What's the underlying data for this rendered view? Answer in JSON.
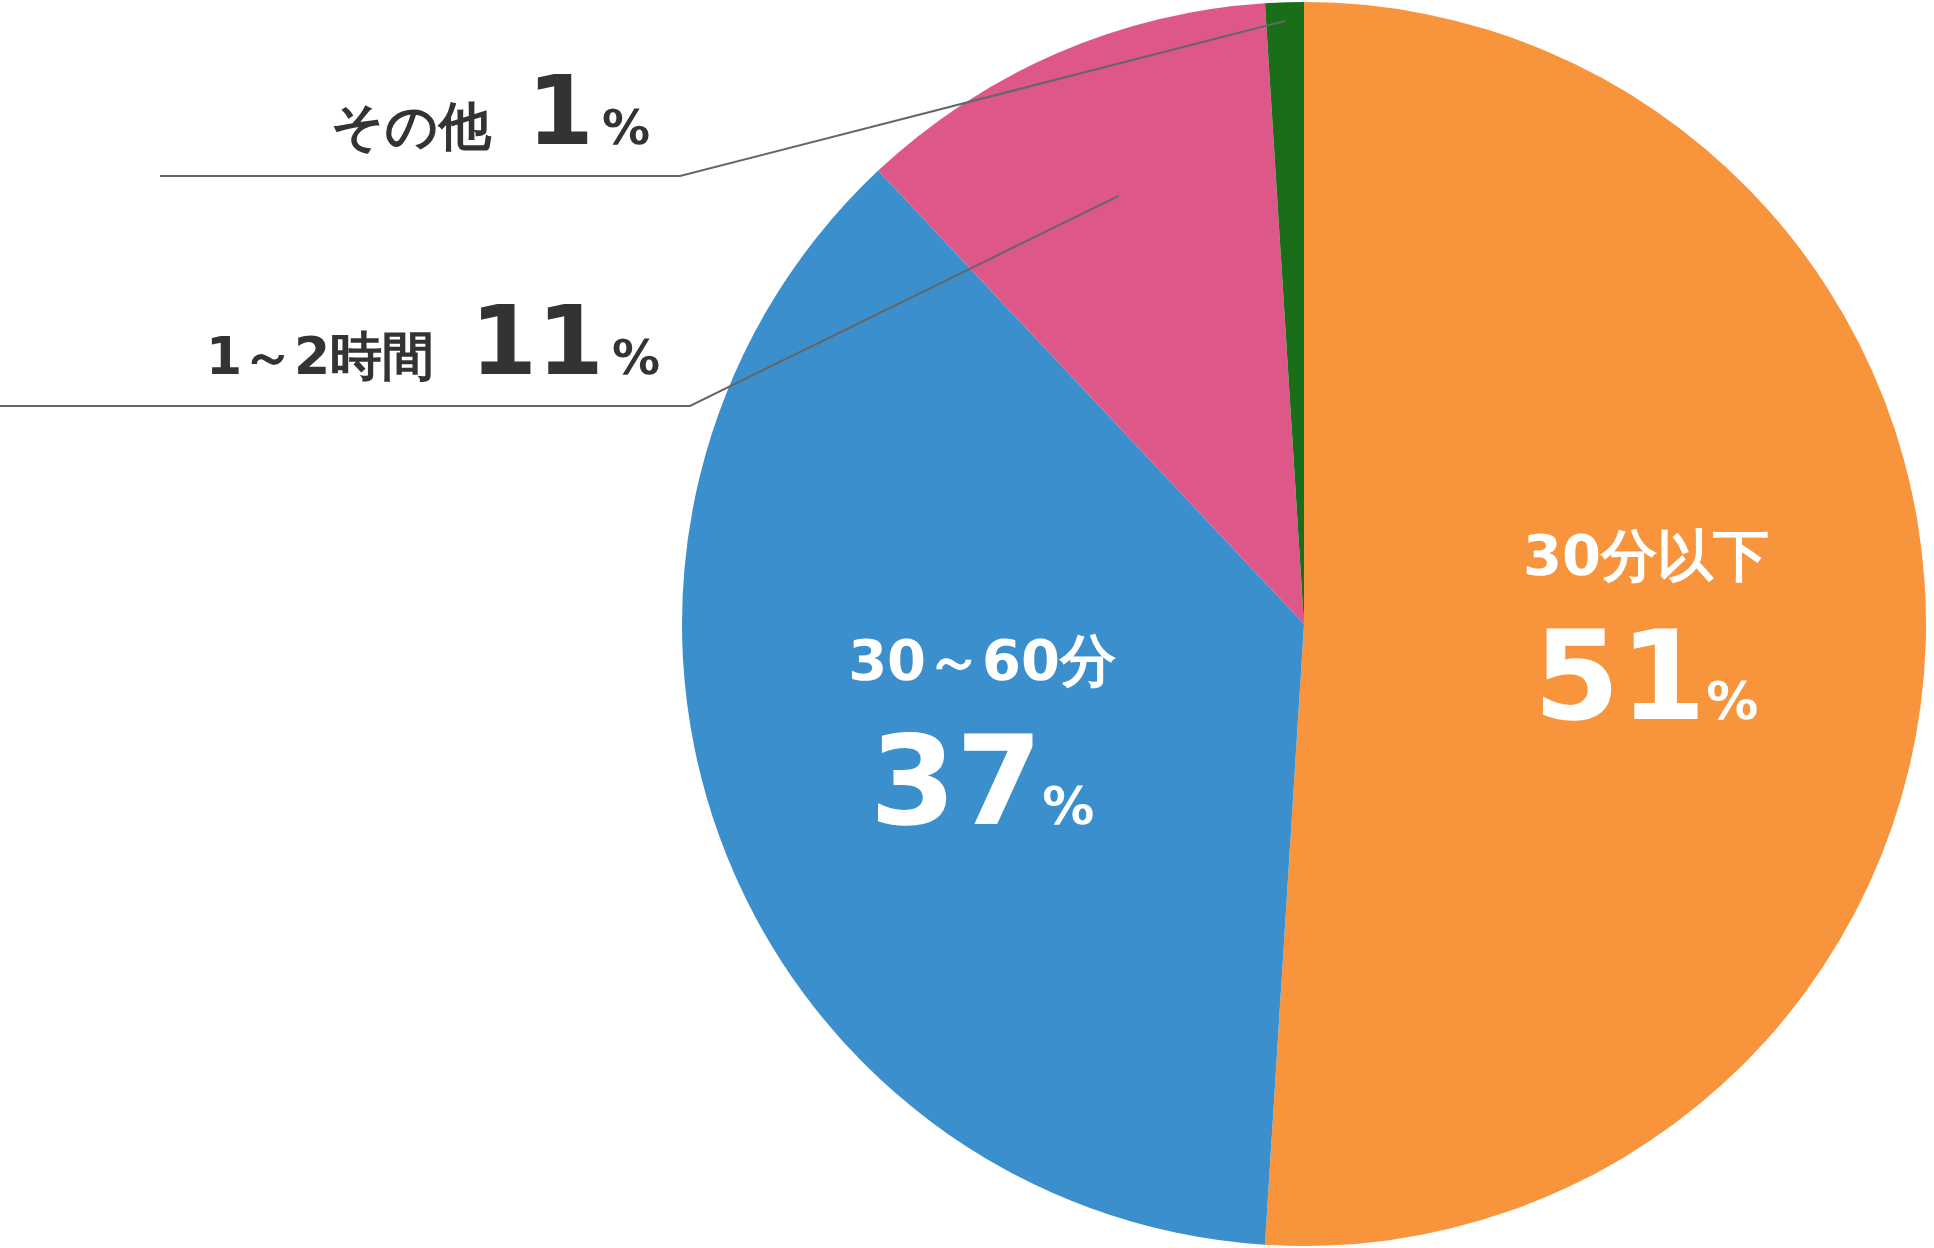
{
  "chart_data": {
    "type": "pie",
    "categories": [
      "30分以下",
      "30～60分",
      "1～2時間",
      "その他"
    ],
    "values": [
      51,
      37,
      11,
      1
    ],
    "value_labels": [
      "51%",
      "37%",
      "11%",
      "1%"
    ],
    "colors": [
      "#f7943c",
      "#3a8fcc",
      "#dd5889",
      "#1a6e1a"
    ]
  }
}
